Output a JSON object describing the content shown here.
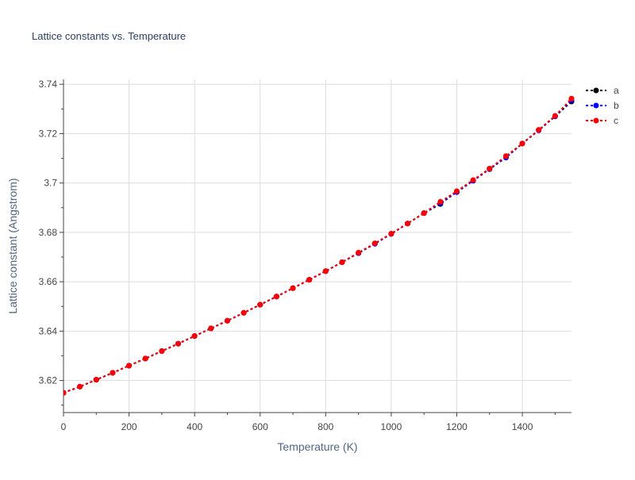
{
  "chart_data": {
    "type": "line",
    "title": "Lattice constants vs. Temperature",
    "xlabel": "Temperature (K)",
    "ylabel": "Lattice constant (Angstrom)",
    "xlim": [
      0,
      1550
    ],
    "ylim": [
      3.607,
      3.742
    ],
    "xticks": [
      0,
      200,
      400,
      600,
      800,
      1000,
      1200,
      1400
    ],
    "xtick_labels": [
      "0",
      "200",
      "400",
      "600",
      "800",
      "1000",
      "1200",
      "1400"
    ],
    "yticks": [
      3.62,
      3.64,
      3.66,
      3.68,
      3.7,
      3.72,
      3.74
    ],
    "ytick_labels": [
      "3.62",
      "3.64",
      "3.66",
      "3.68",
      "3.7",
      "3.72",
      "3.74"
    ],
    "grid": true,
    "legend_position": "top-right",
    "x": [
      0,
      50,
      100,
      150,
      200,
      250,
      300,
      350,
      400,
      450,
      500,
      550,
      600,
      650,
      700,
      750,
      800,
      850,
      900,
      950,
      1000,
      1050,
      1100,
      1150,
      1200,
      1250,
      1300,
      1350,
      1400,
      1450,
      1500,
      1550
    ],
    "series": [
      {
        "name": "a",
        "color": "#000000",
        "values": [
          3.615,
          3.6175,
          3.6203,
          3.6231,
          3.626,
          3.6289,
          3.6319,
          3.6349,
          3.638,
          3.6411,
          3.6442,
          3.6474,
          3.6507,
          3.654,
          3.6574,
          3.6608,
          3.6643,
          3.6679,
          3.6716,
          3.6754,
          3.6794,
          3.6836,
          3.6878,
          3.6915,
          3.6965,
          3.7011,
          3.7058,
          3.7105,
          3.716,
          3.7215,
          3.727,
          3.733
        ]
      },
      {
        "name": "b",
        "color": "#0000ff",
        "values": [
          3.615,
          3.6175,
          3.6203,
          3.6231,
          3.626,
          3.6289,
          3.6319,
          3.6349,
          3.638,
          3.6411,
          3.6442,
          3.6474,
          3.6507,
          3.654,
          3.6574,
          3.6608,
          3.6643,
          3.6679,
          3.6716,
          3.6754,
          3.6794,
          3.6836,
          3.6878,
          3.6918,
          3.6963,
          3.7009,
          3.7056,
          3.7103,
          3.716,
          3.7213,
          3.727,
          3.7335
        ]
      },
      {
        "name": "c",
        "color": "#ff0000",
        "values": [
          3.615,
          3.6175,
          3.6203,
          3.6231,
          3.626,
          3.6289,
          3.6319,
          3.6349,
          3.638,
          3.6411,
          3.6442,
          3.6474,
          3.6507,
          3.654,
          3.6574,
          3.6608,
          3.6643,
          3.6679,
          3.6718,
          3.6756,
          3.6795,
          3.6836,
          3.6878,
          3.6924,
          3.6967,
          3.7012,
          3.7058,
          3.7109,
          3.716,
          3.7215,
          3.7272,
          3.7342
        ]
      }
    ]
  }
}
